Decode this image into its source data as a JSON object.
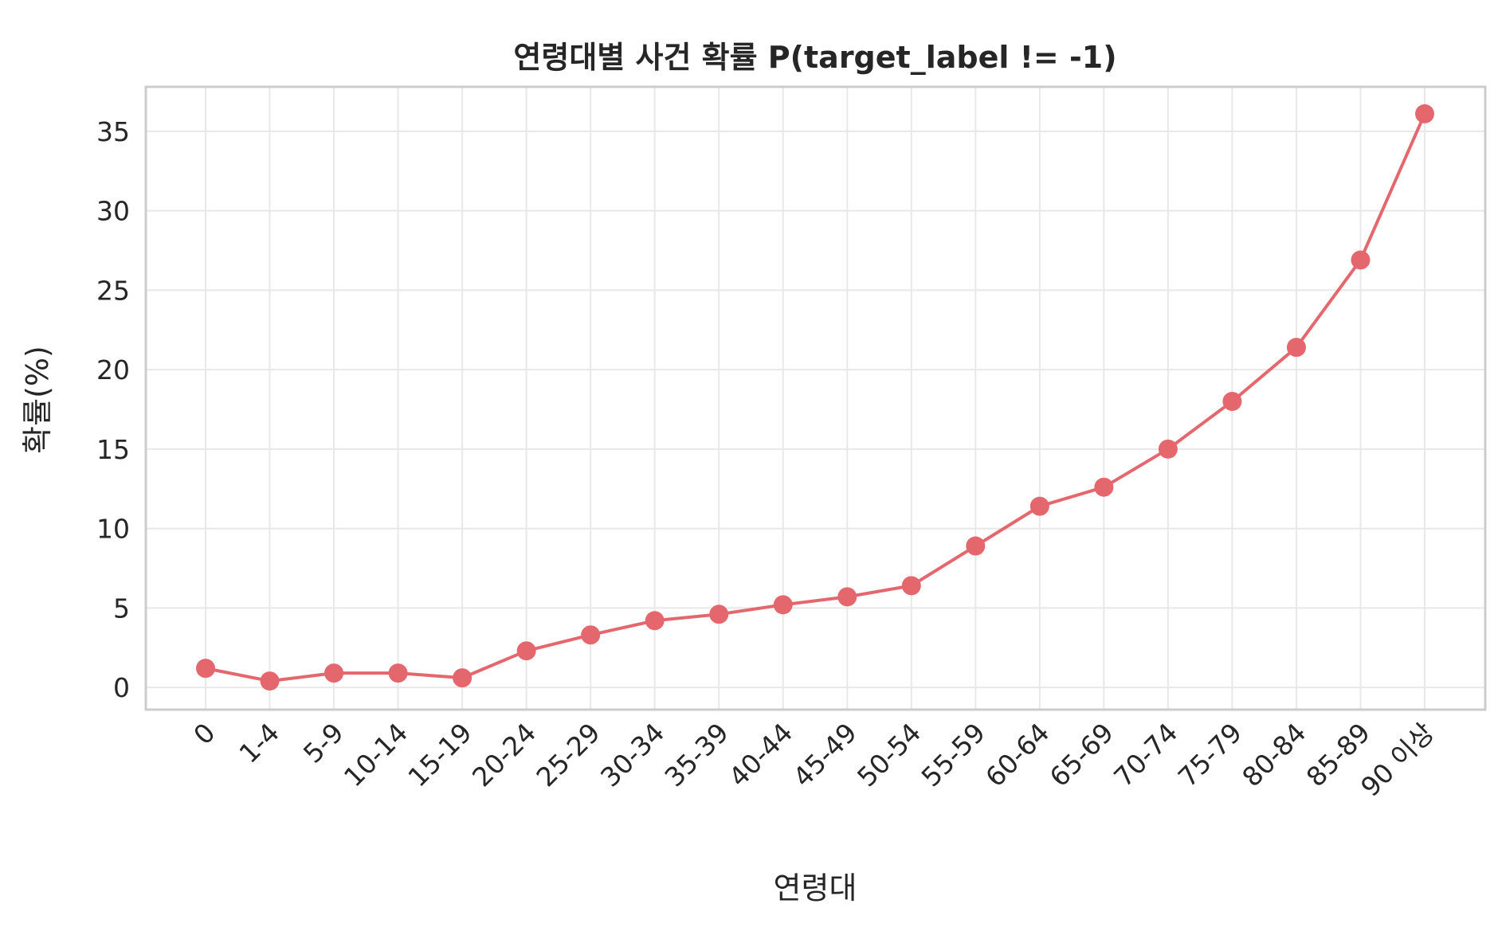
{
  "chart_data": {
    "type": "line",
    "title": "연령대별 사건 확률 P(target_label != -1)",
    "xlabel": "연령대",
    "ylabel": "확률(%)",
    "categories": [
      "0",
      "1-4",
      "5-9",
      "10-14",
      "15-19",
      "20-24",
      "25-29",
      "30-34",
      "35-39",
      "40-44",
      "45-49",
      "50-54",
      "55-59",
      "60-64",
      "65-69",
      "70-74",
      "75-79",
      "80-84",
      "85-89",
      "90 이상"
    ],
    "series": [
      {
        "values": [
          1.2,
          0.4,
          0.9,
          0.9,
          0.6,
          2.3,
          3.3,
          4.2,
          4.6,
          5.2,
          5.7,
          6.4,
          8.9,
          11.4,
          12.6,
          15.0,
          18.0,
          21.4,
          26.9,
          36.1
        ],
        "color": "#e5676e"
      }
    ],
    "ylim": [
      -1.4,
      37.8
    ],
    "yticks": [
      0,
      5,
      10,
      15,
      20,
      25,
      30,
      35
    ],
    "grid": true,
    "legend": "none"
  }
}
